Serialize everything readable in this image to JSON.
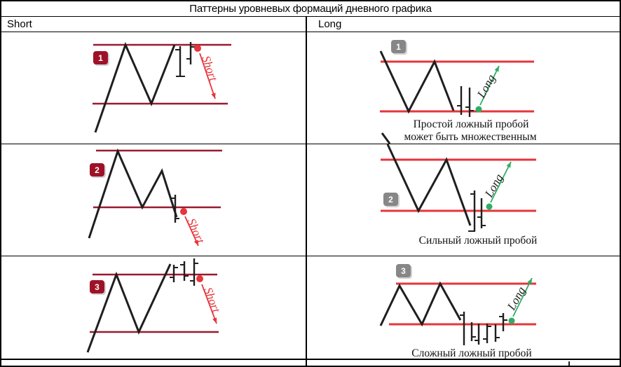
{
  "title": "Паттерны уровневых формаций дневного графика",
  "headers": {
    "left": "Short",
    "right": "Long"
  },
  "colors": {
    "ink": "#1f1f1f",
    "short_line": "#9a1a30",
    "short_accent": "#e6353b",
    "long_line": "#e6353b",
    "long_accent": "#2fae64",
    "badge_short": "#9e1228",
    "badge_long": "#878787"
  },
  "cells": {
    "short1": {
      "badge": "1",
      "label": "Short"
    },
    "short2": {
      "badge": "2",
      "label": "Short"
    },
    "short3": {
      "badge": "3",
      "label": "Short"
    },
    "long1": {
      "badge": "1",
      "label": "Long",
      "caption_line1": "Простой ложный пробой",
      "caption_line2": "может быть множественным"
    },
    "long2": {
      "badge": "2",
      "label": "Long",
      "caption": "Сильный ложный пробой"
    },
    "long3": {
      "badge": "3",
      "label": "Long",
      "caption": "Сложный ложный пробой"
    }
  }
}
